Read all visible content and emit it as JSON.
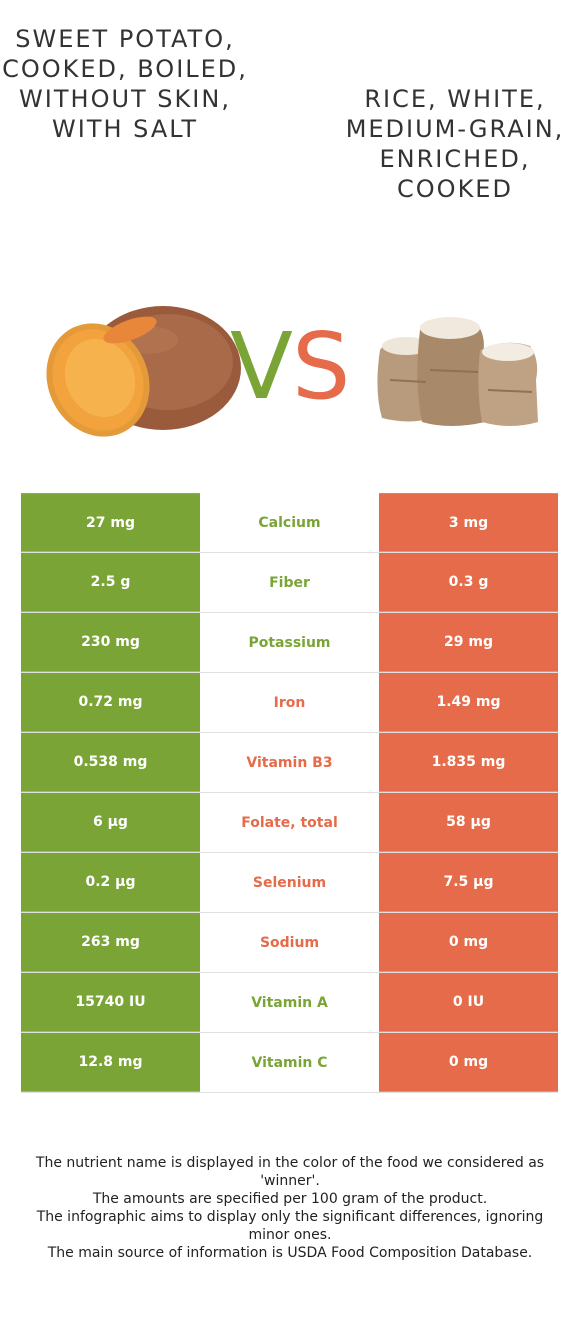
{
  "titles": {
    "left": "SWEET POTATO, COOKED, BOILED, WITHOUT SKIN, WITH SALT",
    "right": "RICE, WHITE, MEDIUM-GRAIN, ENRICHED, COOKED"
  },
  "colors": {
    "left": "#7aa536",
    "right": "#e56b4a"
  },
  "vs": {
    "v": "V",
    "s": "S"
  },
  "rows": [
    {
      "left": "27 mg",
      "name": "Calcium",
      "right": "3 mg",
      "winner": "left"
    },
    {
      "left": "2.5 g",
      "name": "Fiber",
      "right": "0.3 g",
      "winner": "left"
    },
    {
      "left": "230 mg",
      "name": "Potassium",
      "right": "29 mg",
      "winner": "left"
    },
    {
      "left": "0.72 mg",
      "name": "Iron",
      "right": "1.49 mg",
      "winner": "right"
    },
    {
      "left": "0.538 mg",
      "name": "Vitamin B3",
      "right": "1.835 mg",
      "winner": "right"
    },
    {
      "left": "6 µg",
      "name": "Folate, total",
      "right": "58 µg",
      "winner": "right"
    },
    {
      "left": "0.2 µg",
      "name": "Selenium",
      "right": "7.5 µg",
      "winner": "right"
    },
    {
      "left": "263 mg",
      "name": "Sodium",
      "right": "0 mg",
      "winner": "right"
    },
    {
      "left": "15740 IU",
      "name": "Vitamin A",
      "right": "0 IU",
      "winner": "left"
    },
    {
      "left": "12.8 mg",
      "name": "Vitamin C",
      "right": "0 mg",
      "winner": "left"
    }
  ],
  "footer": [
    "The nutrient name is displayed in the color of the food we considered as 'winner'.",
    "The amounts are specified per 100 gram of the product.",
    "The infographic aims to display only the significant differences, ignoring minor ones.",
    "The main source of information is USDA Food Composition Database."
  ]
}
